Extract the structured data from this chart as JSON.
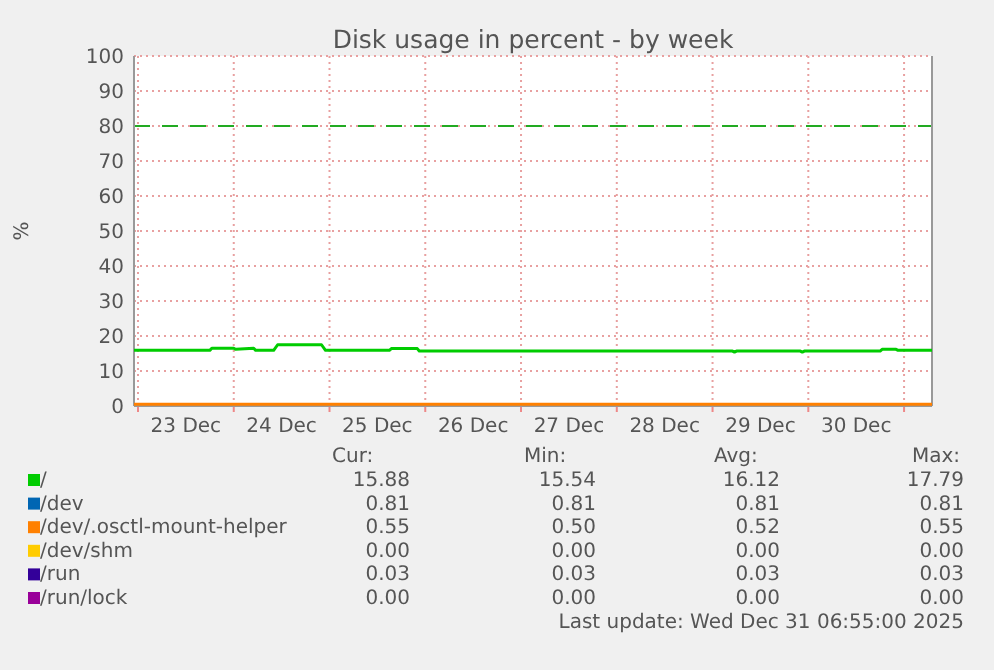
{
  "chart_data": {
    "type": "line",
    "title": "Disk usage in percent - by week",
    "ylabel": "%",
    "xlim": [
      "2025-12-22T23:00",
      "2025-12-31T07:00"
    ],
    "xticks": [
      {
        "value": "2025-12-23T00:00",
        "label": null
      },
      {
        "value": "2025-12-23T12:00",
        "label": "23 Dec"
      },
      {
        "value": "2025-12-24T00:00",
        "label": null
      },
      {
        "value": "2025-12-24T12:00",
        "label": "24 Dec"
      },
      {
        "value": "2025-12-25T00:00",
        "label": null
      },
      {
        "value": "2025-12-25T12:00",
        "label": "25 Dec"
      },
      {
        "value": "2025-12-26T00:00",
        "label": null
      },
      {
        "value": "2025-12-26T12:00",
        "label": "26 Dec"
      },
      {
        "value": "2025-12-27T00:00",
        "label": null
      },
      {
        "value": "2025-12-27T12:00",
        "label": "27 Dec"
      },
      {
        "value": "2025-12-28T00:00",
        "label": null
      },
      {
        "value": "2025-12-28T12:00",
        "label": "28 Dec"
      },
      {
        "value": "2025-12-29T00:00",
        "label": null
      },
      {
        "value": "2025-12-29T12:00",
        "label": "29 Dec"
      },
      {
        "value": "2025-12-30T00:00",
        "label": null
      },
      {
        "value": "2025-12-30T12:00",
        "label": "30 Dec"
      },
      {
        "value": "2025-12-31T00:00",
        "label": null
      }
    ],
    "ylim": [
      0,
      100
    ],
    "yticks": [
      0,
      10,
      20,
      30,
      40,
      50,
      60,
      70,
      80,
      90,
      100
    ],
    "grid": true,
    "legend": "bottom",
    "line_style": "solid",
    "ref_lines": [
      {
        "axis": "y",
        "value": 80,
        "color": "#22aa22",
        "line_style": "dashed"
      }
    ],
    "series": [
      {
        "name": "/",
        "color": "#00cc00",
        "x": [
          "2025-12-22T23:00",
          "2025-12-23T18:00",
          "2025-12-23T18:30",
          "2025-12-24T00:00",
          "2025-12-24T00:30",
          "2025-12-24T05:00",
          "2025-12-24T05:30",
          "2025-12-24T10:00",
          "2025-12-24T11:00",
          "2025-12-24T22:00",
          "2025-12-24T23:00",
          "2025-12-25T15:00",
          "2025-12-25T15:30",
          "2025-12-25T22:00",
          "2025-12-25T22:30",
          "2025-12-29T05:00",
          "2025-12-29T05:30",
          "2025-12-29T06:00",
          "2025-12-29T22:00",
          "2025-12-29T22:30",
          "2025-12-29T23:00",
          "2025-12-30T18:00",
          "2025-12-30T18:30",
          "2025-12-30T22:00",
          "2025-12-30T22:30",
          "2025-12-31T07:00"
        ],
        "values": [
          15.9,
          15.9,
          16.5,
          16.5,
          16.2,
          16.5,
          15.9,
          15.9,
          17.5,
          17.5,
          15.9,
          15.9,
          16.4,
          16.4,
          15.7,
          15.7,
          15.4,
          15.7,
          15.7,
          15.4,
          15.7,
          15.7,
          16.2,
          16.2,
          15.9,
          15.9
        ]
      },
      {
        "name": "/dev",
        "color": "#0066b3",
        "values": [
          null,
          null
        ]
      },
      {
        "name": "/dev/.osctl-mount-helper",
        "color": "#ff8000",
        "x": [
          "2025-12-22T23:00",
          "2025-12-31T07:00"
        ],
        "values": [
          0.5,
          0.5
        ]
      },
      {
        "name": "/dev/shm",
        "color": "#ffcc00",
        "values": [
          null,
          null
        ]
      },
      {
        "name": "/run",
        "color": "#330099",
        "values": [
          null,
          null
        ]
      },
      {
        "name": "/run/lock",
        "color": "#990099",
        "values": [
          null,
          null
        ]
      }
    ],
    "annotations": [
      "Cur:",
      "Min:",
      "Avg:",
      "Max:",
      "15.88",
      "15.54",
      "16.12",
      "17.79",
      "0.81",
      "0.81",
      "0.81",
      "0.81",
      "0.55",
      "0.50",
      "0.52",
      "0.55",
      "0.00",
      "0.00",
      "0.00",
      "0.00",
      "0.03",
      "0.03",
      "0.03",
      "0.03",
      "0.00",
      "0.00",
      "0.00",
      "0.00",
      "Last update: Wed Dec 31 06:55:00 2025"
    ]
  }
}
